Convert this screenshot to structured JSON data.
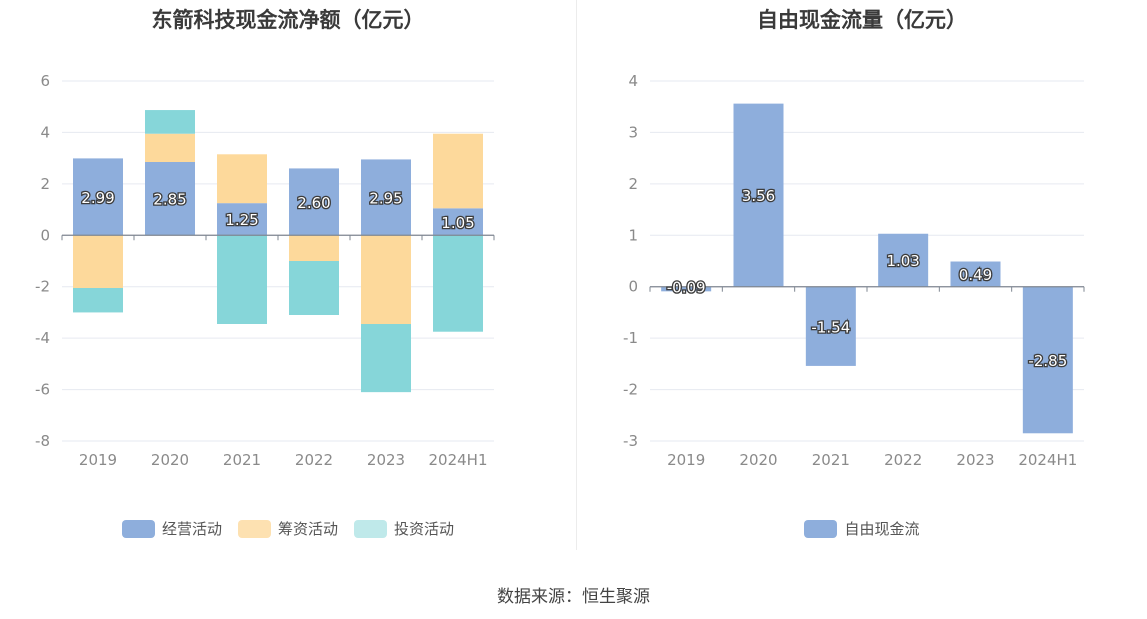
{
  "source": "数据来源：恒生聚源",
  "colors": {
    "operating": "#8eaedc",
    "financing": "#fdd99b",
    "investing": "#86d6d9",
    "fcf": "#8eaedc"
  },
  "chart_data": [
    {
      "type": "bar",
      "stacked": true,
      "title": "东箭科技现金流净额（亿元）",
      "categories": [
        "2019",
        "2020",
        "2021",
        "2022",
        "2023",
        "2024H1"
      ],
      "ylim": [
        -8,
        6
      ],
      "yticks": [
        "6",
        "4",
        "2",
        "0",
        "-2",
        "-4",
        "-6",
        "-8"
      ],
      "grid": true,
      "legend_position": "bottom",
      "series": [
        {
          "name": "经营活动",
          "values": [
            2.99,
            2.85,
            1.25,
            2.6,
            2.95,
            1.05
          ],
          "labels": [
            "2.99",
            "2.85",
            "1.25",
            "2.60",
            "2.95",
            "1.05"
          ]
        },
        {
          "name": "筹资活动",
          "values": [
            -2.05,
            1.1,
            1.9,
            -1.0,
            -3.45,
            2.9
          ]
        },
        {
          "name": "投资活动",
          "values": [
            -0.95,
            0.92,
            -3.45,
            -2.1,
            -2.65,
            -3.75
          ]
        }
      ]
    },
    {
      "type": "bar",
      "title": "自由现金流量（亿元）",
      "categories": [
        "2019",
        "2020",
        "2021",
        "2022",
        "2023",
        "2024H1"
      ],
      "ylim": [
        -3,
        4
      ],
      "yticks": [
        "4",
        "3",
        "2",
        "1",
        "0",
        "-1",
        "-2",
        "-3"
      ],
      "grid": true,
      "legend_position": "bottom",
      "series": [
        {
          "name": "自由现金流",
          "values": [
            -0.09,
            3.56,
            -1.54,
            1.03,
            0.49,
            -2.85
          ],
          "labels": [
            "-0.09",
            "3.56",
            "-1.54",
            "1.03",
            "0.49",
            "-2.85"
          ]
        }
      ]
    }
  ]
}
